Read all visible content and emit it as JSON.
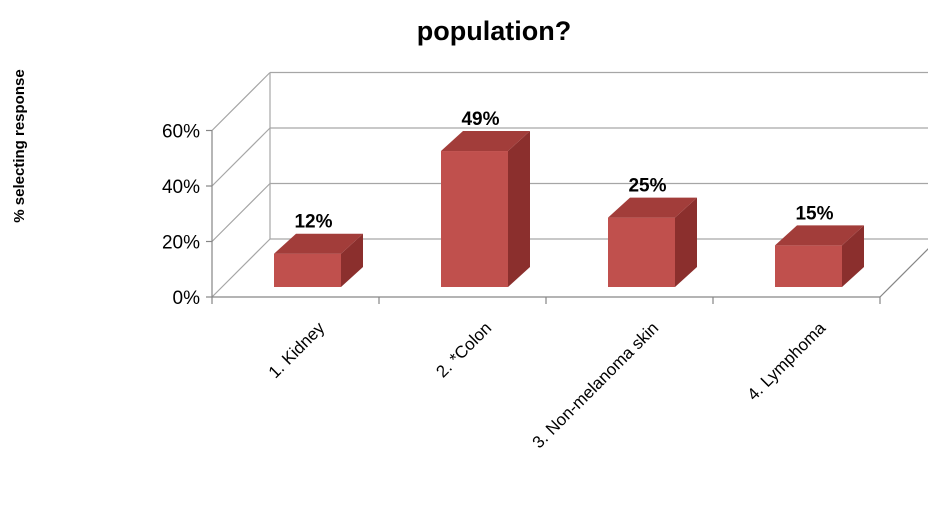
{
  "chart_data": {
    "type": "bar",
    "title": "population?",
    "ylabel": "% selecting response",
    "xlabel": "",
    "categories": [
      "1. Kidney",
      "2. *Colon",
      "3. Non-melanoma skin",
      "4. Lymphoma"
    ],
    "values": [
      12,
      49,
      25,
      15
    ],
    "data_labels": [
      "12%",
      "49%",
      "25%",
      "15%"
    ],
    "yticks": [
      "0%",
      "20%",
      "40%",
      "60%"
    ],
    "ytick_values": [
      0,
      20,
      40,
      60
    ],
    "ylim": [
      0,
      60
    ],
    "grid": true,
    "legend": "none",
    "style": "3d-column",
    "colors": {
      "bar_front": "#C0504D",
      "bar_side": "#8B2F2D",
      "bar_top": "#A23D3A",
      "grid": "#A6A6A6",
      "axis": "#868686"
    }
  }
}
